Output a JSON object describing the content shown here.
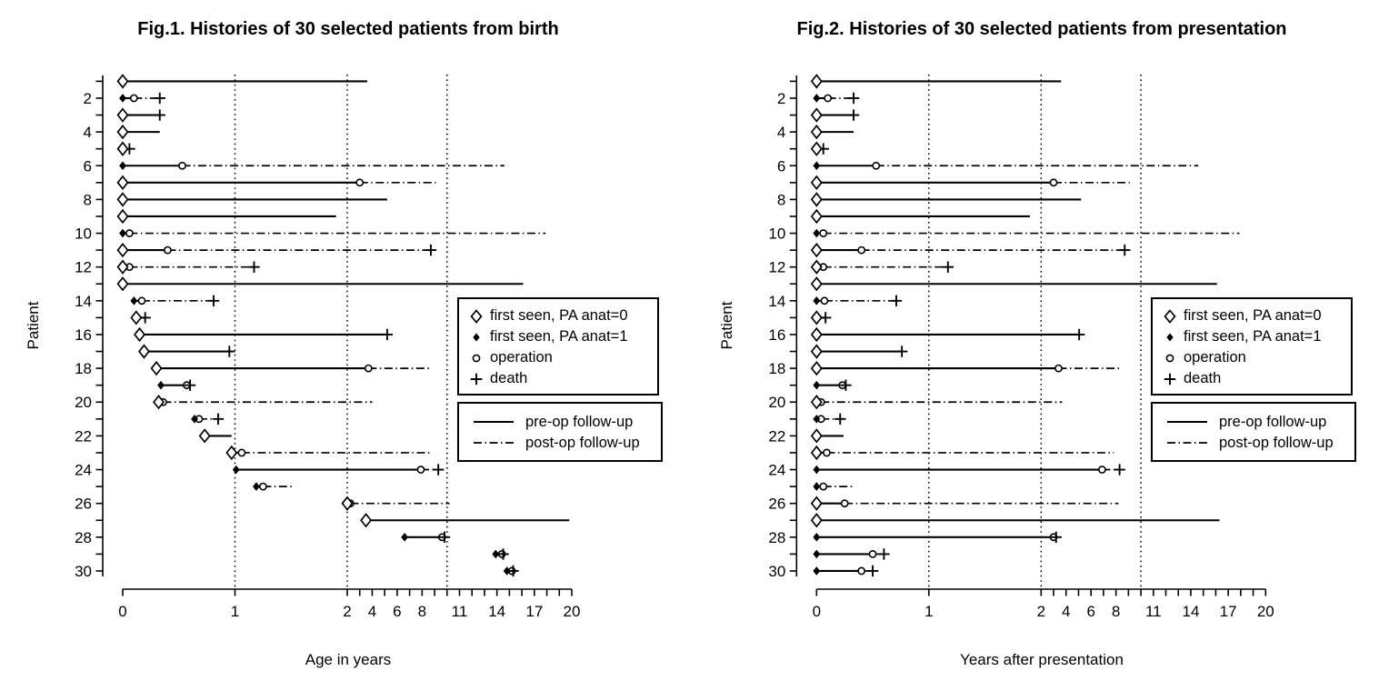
{
  "page": {
    "background": "#ffffff",
    "foreground": "#000000"
  },
  "fig1": {
    "title": "Fig.1. Histories of 30 selected patients from birth",
    "xlabel": "Age in years",
    "ylabel": "Patient"
  },
  "fig2": {
    "title": "Fig.2. Histories of 30 selected patients from presentation",
    "xlabel": "Years after presentation",
    "ylabel": "Patient"
  },
  "legend": {
    "markers": [
      {
        "icon": "open-diamond-icon",
        "label": "first seen, PA anat=0"
      },
      {
        "icon": "filled-diamond-icon",
        "label": "first seen, PA anat=1"
      },
      {
        "icon": "open-circle-icon",
        "label": "operation"
      },
      {
        "icon": "plus-icon",
        "label": "death"
      }
    ],
    "lines": [
      {
        "style": "solid",
        "label": "pre-op follow-up"
      },
      {
        "style": "dashdot",
        "label": "post-op follow-up"
      }
    ]
  },
  "chart_data": {
    "type": "event-history",
    "panels": [
      {
        "id": "fig1",
        "time_origin": "birth"
      },
      {
        "id": "fig2",
        "time_origin": "presentation"
      }
    ],
    "x_axis": {
      "range": [
        0,
        20
      ],
      "major_ticks": [
        0,
        1,
        2,
        4,
        6,
        8,
        11,
        14,
        17,
        20
      ],
      "minor_ticks": [
        3,
        5,
        7,
        9,
        10,
        12,
        13,
        15,
        16,
        18,
        19
      ],
      "gridline_ages": [
        1,
        2,
        10
      ],
      "scale_note": "linear from 0 to 2 years, compressed 9x beyond 2 years",
      "grid": "dotted vertical lines"
    },
    "y_axis": {
      "range": [
        1,
        30
      ],
      "labeled_ticks": [
        2,
        4,
        6,
        8,
        10,
        12,
        14,
        16,
        18,
        20,
        22,
        24,
        26,
        28,
        30
      ]
    },
    "event_semantics": {
      "first_seen": "diamond (open = PA anat 0, filled = PA anat 1)",
      "operation": "open circle",
      "death": "plus",
      "preop_line": "solid, from first seen to operation or end of follow-up",
      "postop_line": "dash-dot, from operation to death or end of follow-up",
      "fig2_times": "all event ages minus first_seen age"
    },
    "patients": [
      {
        "id": 1,
        "pa_anat": 0,
        "first_seen": 0,
        "operation": null,
        "death": null,
        "followup_end": 3.6
      },
      {
        "id": 2,
        "pa_anat": 1,
        "first_seen": 0,
        "operation": 0.1,
        "death": 0.33,
        "followup_end": 0.33
      },
      {
        "id": 3,
        "pa_anat": 0,
        "first_seen": 0,
        "operation": null,
        "death": 0.33,
        "followup_end": 0.33
      },
      {
        "id": 4,
        "pa_anat": 0,
        "first_seen": 0,
        "operation": null,
        "death": null,
        "followup_end": 0.33
      },
      {
        "id": 5,
        "pa_anat": 0,
        "first_seen": 0,
        "operation": null,
        "death": 0.06,
        "followup_end": 0.06
      },
      {
        "id": 6,
        "pa_anat": 1,
        "first_seen": 0,
        "operation": 0.53,
        "death": null,
        "followup_end": 14.6
      },
      {
        "id": 7,
        "pa_anat": 0,
        "first_seen": 0,
        "operation": 3.0,
        "death": null,
        "followup_end": 9.1
      },
      {
        "id": 8,
        "pa_anat": 0,
        "first_seen": 0,
        "operation": null,
        "death": null,
        "followup_end": 5.2
      },
      {
        "id": 9,
        "pa_anat": 0,
        "first_seen": 0,
        "operation": null,
        "death": null,
        "followup_end": 1.9
      },
      {
        "id": 10,
        "pa_anat": 1,
        "first_seen": 0,
        "operation": 0.06,
        "death": null,
        "followup_end": 17.9
      },
      {
        "id": 11,
        "pa_anat": 0,
        "first_seen": 0,
        "operation": 0.4,
        "death": 8.7,
        "followup_end": 8.7
      },
      {
        "id": 12,
        "pa_anat": 0,
        "first_seen": 0,
        "operation": 0.06,
        "death": 1.17,
        "followup_end": 1.17
      },
      {
        "id": 13,
        "pa_anat": 0,
        "first_seen": 0,
        "operation": null,
        "death": null,
        "followup_end": 16.1
      },
      {
        "id": 14,
        "pa_anat": 1,
        "first_seen": 0.1,
        "operation": 0.17,
        "death": 0.81,
        "followup_end": 0.81
      },
      {
        "id": 15,
        "pa_anat": 0,
        "first_seen": 0.12,
        "operation": null,
        "death": 0.2,
        "followup_end": 0.2
      },
      {
        "id": 16,
        "pa_anat": 0,
        "first_seen": 0.15,
        "operation": null,
        "death": 5.2,
        "followup_end": 5.2
      },
      {
        "id": 17,
        "pa_anat": 0,
        "first_seen": 0.19,
        "operation": null,
        "death": 0.95,
        "followup_end": 0.95
      },
      {
        "id": 18,
        "pa_anat": 0,
        "first_seen": 0.3,
        "operation": 3.7,
        "death": null,
        "followup_end": 8.7
      },
      {
        "id": 19,
        "pa_anat": 1,
        "first_seen": 0.34,
        "operation": 0.57,
        "death": 0.6,
        "followup_end": 0.6
      },
      {
        "id": 20,
        "pa_anat": 0,
        "first_seen": 0.32,
        "operation": 0.36,
        "death": null,
        "followup_end": 4.0
      },
      {
        "id": 21,
        "pa_anat": 1,
        "first_seen": 0.64,
        "operation": 0.68,
        "death": 0.85,
        "followup_end": 0.85
      },
      {
        "id": 22,
        "pa_anat": 0,
        "first_seen": 0.73,
        "operation": null,
        "death": null,
        "followup_end": 0.97
      },
      {
        "id": 23,
        "pa_anat": 0,
        "first_seen": 0.97,
        "operation": 1.06,
        "death": null,
        "followup_end": 8.8
      },
      {
        "id": 24,
        "pa_anat": 1,
        "first_seen": 1.01,
        "operation": 7.9,
        "death": 9.3,
        "followup_end": 9.3
      },
      {
        "id": 25,
        "pa_anat": 1,
        "first_seen": 1.19,
        "operation": 1.25,
        "death": null,
        "followup_end": 1.51
      },
      {
        "id": 26,
        "pa_anat": 0,
        "first_seen": 2.0,
        "operation": 2.25,
        "death": null,
        "followup_end": 10.2
      },
      {
        "id": 27,
        "pa_anat": 0,
        "first_seen": 3.5,
        "operation": null,
        "death": null,
        "followup_end": 19.8
      },
      {
        "id": 28,
        "pa_anat": 1,
        "first_seen": 6.6,
        "operation": 9.6,
        "death": 9.8,
        "followup_end": 9.8
      },
      {
        "id": 29,
        "pa_anat": 1,
        "first_seen": 13.9,
        "operation": 14.4,
        "death": 14.5,
        "followup_end": 14.5
      },
      {
        "id": 30,
        "pa_anat": 1,
        "first_seen": 14.8,
        "operation": 15.2,
        "death": 15.3,
        "followup_end": 15.3
      }
    ]
  }
}
